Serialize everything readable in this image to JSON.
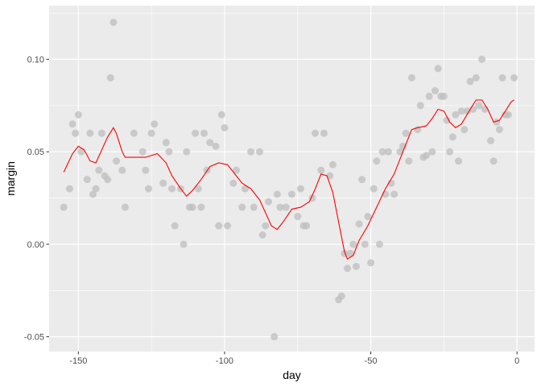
{
  "chart_data": {
    "type": "scatter",
    "xlabel": "day",
    "ylabel": "margin",
    "xlim": [
      -160,
      6
    ],
    "ylim": [
      -0.058,
      0.129
    ],
    "x_ticks": [
      -150,
      -100,
      -50,
      0
    ],
    "x_tick_labels": [
      "-150",
      "-100",
      "-50",
      "0"
    ],
    "y_ticks": [
      -0.05,
      0.0,
      0.05,
      0.1
    ],
    "y_tick_labels": [
      "-0.05",
      "0.00",
      "0.05",
      "0.10"
    ],
    "grid": true,
    "legend": "none",
    "colors": {
      "panel_background": "#ebebeb",
      "grid_major": "#ffffff",
      "point_fill": "#bebebe",
      "smooth_line": "#ff0000"
    },
    "series": [
      {
        "kind": "points",
        "points": [
          [
            -155,
            0.02
          ],
          [
            -153,
            0.03
          ],
          [
            -152,
            0.065
          ],
          [
            -151,
            0.06
          ],
          [
            -150,
            0.07
          ],
          [
            -149,
            0.05
          ],
          [
            -147,
            0.035
          ],
          [
            -146,
            0.06
          ],
          [
            -145,
            0.027
          ],
          [
            -144,
            0.03
          ],
          [
            -143,
            0.04
          ],
          [
            -142,
            0.06
          ],
          [
            -141,
            0.037
          ],
          [
            -140,
            0.035
          ],
          [
            -139,
            0.09
          ],
          [
            -138,
            0.12
          ],
          [
            -137,
            0.045
          ],
          [
            -135,
            0.04
          ],
          [
            -134,
            0.02
          ],
          [
            -131,
            0.06
          ],
          [
            -128,
            0.05
          ],
          [
            -127,
            0.04
          ],
          [
            -126,
            0.03
          ],
          [
            -125,
            0.06
          ],
          [
            -124,
            0.065
          ],
          [
            -121,
            0.033
          ],
          [
            -120,
            0.055
          ],
          [
            -119,
            0.05
          ],
          [
            -118,
            0.03
          ],
          [
            -117,
            0.01
          ],
          [
            -115,
            0.03
          ],
          [
            -114,
            0.0
          ],
          [
            -113,
            0.05
          ],
          [
            -112,
            0.02
          ],
          [
            -111,
            0.02
          ],
          [
            -110,
            0.06
          ],
          [
            -109,
            0.03
          ],
          [
            -108,
            0.02
          ],
          [
            -107,
            0.06
          ],
          [
            -106,
            0.04
          ],
          [
            -105,
            0.055
          ],
          [
            -103,
            0.053
          ],
          [
            -102,
            0.01
          ],
          [
            -101,
            0.07
          ],
          [
            -100,
            0.063
          ],
          [
            -99,
            0.01
          ],
          [
            -97,
            0.033
          ],
          [
            -96,
            0.04
          ],
          [
            -94,
            0.02
          ],
          [
            -93,
            0.03
          ],
          [
            -91,
            0.05
          ],
          [
            -90,
            0.02
          ],
          [
            -88,
            0.05
          ],
          [
            -87,
            0.005
          ],
          [
            -86,
            0.01
          ],
          [
            -85,
            0.023
          ],
          [
            -83,
            -0.05
          ],
          [
            -82,
            0.027
          ],
          [
            -81,
            0.02
          ],
          [
            -79,
            0.02
          ],
          [
            -77,
            0.027
          ],
          [
            -75,
            0.015
          ],
          [
            -74,
            0.03
          ],
          [
            -73,
            0.01
          ],
          [
            -72,
            0.01
          ],
          [
            -70,
            0.025
          ],
          [
            -69,
            0.06
          ],
          [
            -67,
            0.04
          ],
          [
            -66,
            0.06
          ],
          [
            -64,
            0.037
          ],
          [
            -63,
            0.043
          ],
          [
            -61,
            -0.03
          ],
          [
            -60,
            -0.028
          ],
          [
            -59,
            -0.005
          ],
          [
            -58,
            -0.013
          ],
          [
            -57,
            -0.005
          ],
          [
            -56,
            0.0
          ],
          [
            -55,
            -0.012
          ],
          [
            -54,
            0.011
          ],
          [
            -53,
            0.035
          ],
          [
            -52,
            0.0
          ],
          [
            -51,
            0.015
          ],
          [
            -50,
            -0.01
          ],
          [
            -49,
            0.03
          ],
          [
            -48,
            0.045
          ],
          [
            -47,
            0.0
          ],
          [
            -46,
            0.05
          ],
          [
            -45,
            0.027
          ],
          [
            -44,
            0.05
          ],
          [
            -43,
            0.033
          ],
          [
            -42,
            0.027
          ],
          [
            -40,
            0.05
          ],
          [
            -39,
            0.053
          ],
          [
            -38,
            0.06
          ],
          [
            -37,
            0.045
          ],
          [
            -36,
            0.09
          ],
          [
            -34,
            0.062
          ],
          [
            -33,
            0.075
          ],
          [
            -32,
            0.047
          ],
          [
            -31,
            0.048
          ],
          [
            -30,
            0.08
          ],
          [
            -29,
            0.05
          ],
          [
            -28,
            0.083
          ],
          [
            -27,
            0.095
          ],
          [
            -26,
            0.08
          ],
          [
            -25,
            0.08
          ],
          [
            -24,
            0.067
          ],
          [
            -23,
            0.05
          ],
          [
            -22,
            0.058
          ],
          [
            -21,
            0.07
          ],
          [
            -20,
            0.045
          ],
          [
            -19,
            0.072
          ],
          [
            -18,
            0.062
          ],
          [
            -17,
            0.072
          ],
          [
            -16,
            0.088
          ],
          [
            -15,
            0.073
          ],
          [
            -14,
            0.09
          ],
          [
            -13,
            0.075
          ],
          [
            -12,
            0.1
          ],
          [
            -11,
            0.073
          ],
          [
            -9,
            0.056
          ],
          [
            -8,
            0.045
          ],
          [
            -7,
            0.066
          ],
          [
            -6,
            0.062
          ],
          [
            -5,
            0.09
          ],
          [
            -4,
            0.07
          ],
          [
            -3,
            0.07
          ],
          [
            -1,
            0.09
          ]
        ]
      },
      {
        "kind": "smooth-line",
        "points": [
          [
            -155,
            0.039
          ],
          [
            -152,
            0.049
          ],
          [
            -150,
            0.053
          ],
          [
            -148,
            0.051
          ],
          [
            -146,
            0.045
          ],
          [
            -144,
            0.044
          ],
          [
            -142,
            0.051
          ],
          [
            -140,
            0.058
          ],
          [
            -138,
            0.063
          ],
          [
            -137,
            0.06
          ],
          [
            -135,
            0.05
          ],
          [
            -134,
            0.047
          ],
          [
            -131,
            0.047
          ],
          [
            -127,
            0.047
          ],
          [
            -123,
            0.049
          ],
          [
            -120,
            0.044
          ],
          [
            -118,
            0.037
          ],
          [
            -115,
            0.03
          ],
          [
            -113,
            0.026
          ],
          [
            -111,
            0.029
          ],
          [
            -108,
            0.035
          ],
          [
            -105,
            0.042
          ],
          [
            -102,
            0.044
          ],
          [
            -99,
            0.043
          ],
          [
            -96,
            0.037
          ],
          [
            -94,
            0.033
          ],
          [
            -91,
            0.03
          ],
          [
            -88,
            0.024
          ],
          [
            -86,
            0.017
          ],
          [
            -84,
            0.01
          ],
          [
            -82,
            0.008
          ],
          [
            -80,
            0.012
          ],
          [
            -77,
            0.019
          ],
          [
            -74,
            0.02
          ],
          [
            -71,
            0.023
          ],
          [
            -69,
            0.03
          ],
          [
            -67,
            0.038
          ],
          [
            -65,
            0.037
          ],
          [
            -63,
            0.028
          ],
          [
            -61,
            0.012
          ],
          [
            -59,
            -0.004
          ],
          [
            -58,
            -0.008
          ],
          [
            -56,
            -0.006
          ],
          [
            -54,
            0.002
          ],
          [
            -51,
            0.01
          ],
          [
            -48,
            0.02
          ],
          [
            -45,
            0.03
          ],
          [
            -42,
            0.038
          ],
          [
            -39,
            0.05
          ],
          [
            -36,
            0.062
          ],
          [
            -34,
            0.063
          ],
          [
            -31,
            0.064
          ],
          [
            -29,
            0.068
          ],
          [
            -27,
            0.073
          ],
          [
            -25,
            0.072
          ],
          [
            -23,
            0.066
          ],
          [
            -21,
            0.063
          ],
          [
            -19,
            0.065
          ],
          [
            -16,
            0.073
          ],
          [
            -14,
            0.078
          ],
          [
            -12,
            0.078
          ],
          [
            -10,
            0.073
          ],
          [
            -8,
            0.066
          ],
          [
            -6,
            0.067
          ],
          [
            -4,
            0.072
          ],
          [
            -2,
            0.077
          ],
          [
            -1,
            0.078
          ]
        ]
      }
    ]
  }
}
